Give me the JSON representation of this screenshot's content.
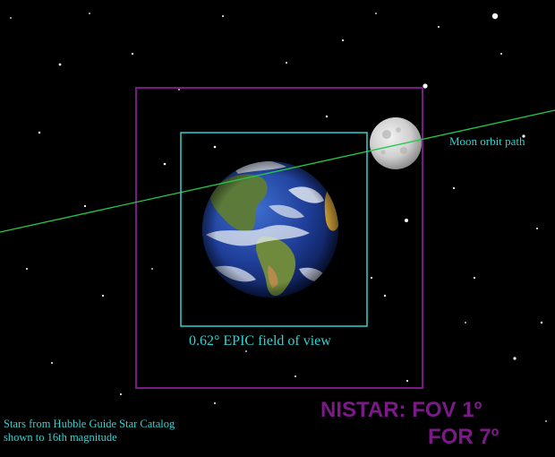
{
  "labels": {
    "moon_orbit": "Moon orbit path",
    "epic_fov": "0.62° EPIC field of view",
    "stars_note_line1": "Stars from Hubble Guide Star Catalog",
    "stars_note_line2": "shown to 16th magnitude",
    "nistar_fov": "NISTAR:  FOV 1º",
    "nistar_for": "FOR 7º"
  },
  "colors": {
    "background": "#000000",
    "epic_box": "#2fd3d3",
    "nistar_box": "#7a1a86",
    "orbit_path": "#22c84a",
    "label_text": "#2fd3d3",
    "nistar_text": "#7a1a86"
  },
  "objects": {
    "earth": "earth-globe",
    "moon": "moon"
  }
}
